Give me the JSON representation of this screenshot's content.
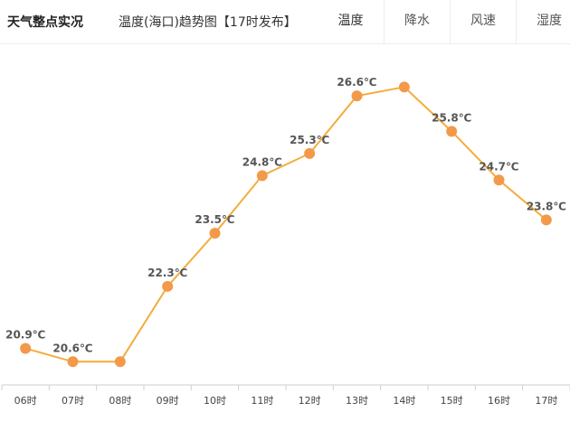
{
  "header": {
    "brand": "天气整点实况",
    "subtitle": "温度(海口)趋势图【17时发布】",
    "tabs": [
      {
        "label": "温度",
        "active": true
      },
      {
        "label": "降水",
        "active": false
      },
      {
        "label": "风速",
        "active": false
      },
      {
        "label": "湿度",
        "active": false
      }
    ]
  },
  "colors": {
    "line": "#f3ac3b",
    "point": "#f29a49",
    "axis": "#cfcfcf"
  },
  "chart_data": {
    "type": "line",
    "title": "",
    "xlabel": "",
    "ylabel": "",
    "categories": [
      "06时",
      "07时",
      "08时",
      "09时",
      "10时",
      "11时",
      "12时",
      "13时",
      "14时",
      "15时",
      "16时",
      "17时"
    ],
    "values": [
      20.9,
      20.6,
      20.6,
      22.3,
      23.5,
      24.8,
      25.3,
      26.6,
      26.8,
      25.8,
      24.7,
      23.8
    ],
    "labels": [
      "20.9℃",
      "20.6℃",
      "",
      "22.3℃",
      "23.5℃",
      "24.8℃",
      "25.3℃",
      "26.6℃",
      "",
      "25.8℃",
      "24.7℃",
      "23.8℃"
    ],
    "ylim": [
      20.3,
      27.5
    ],
    "grid": false,
    "legend": "none"
  }
}
